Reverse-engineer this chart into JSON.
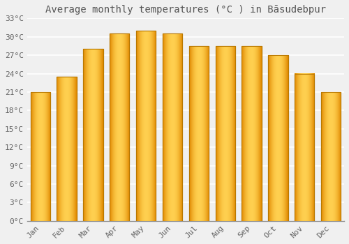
{
  "title": "Average monthly temperatures (°C ) in Bāsudebpur",
  "months": [
    "Jan",
    "Feb",
    "Mar",
    "Apr",
    "May",
    "Jun",
    "Jul",
    "Aug",
    "Sep",
    "Oct",
    "Nov",
    "Dec"
  ],
  "values": [
    21,
    23.5,
    28,
    30.5,
    31,
    30.5,
    28.5,
    28.5,
    28.5,
    27,
    24,
    21
  ],
  "bar_color_center": "#FFD84D",
  "bar_color_edge": "#E8960A",
  "bar_border_color": "#B87800",
  "ylim": [
    0,
    33
  ],
  "yticks": [
    0,
    3,
    6,
    9,
    12,
    15,
    18,
    21,
    24,
    27,
    30,
    33
  ],
  "ytick_labels": [
    "0°C",
    "3°C",
    "6°C",
    "9°C",
    "12°C",
    "15°C",
    "18°C",
    "21°C",
    "24°C",
    "27°C",
    "30°C",
    "33°C"
  ],
  "background_color": "#f0f0f0",
  "plot_bg_color": "#f0f0f0",
  "grid_color": "#ffffff",
  "title_fontsize": 10,
  "tick_fontsize": 8,
  "bar_width": 0.75
}
